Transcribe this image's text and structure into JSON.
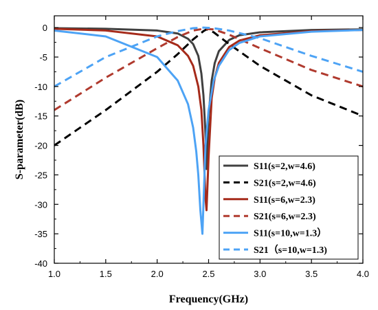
{
  "chart_data": {
    "type": "line",
    "title": "",
    "xlabel": "Frequency(GHz)",
    "ylabel": "S-parameter(dB)",
    "xlim": [
      1.0,
      4.0
    ],
    "ylim": [
      -40,
      2
    ],
    "xticks": [
      "1.0",
      "1.5",
      "2.0",
      "2.5",
      "3.0",
      "3.5",
      "4.0"
    ],
    "yticks": [
      "0",
      "-5",
      "-10",
      "-15",
      "-20",
      "-25",
      "-30",
      "-35",
      "-40"
    ],
    "grid": false,
    "legend_position": "bottom-right",
    "series": [
      {
        "name": "S11(s=2,w=4.6)",
        "color": "#404040",
        "dash": "solid",
        "x": [
          1.0,
          1.5,
          2.0,
          2.2,
          2.3,
          2.35,
          2.4,
          2.43,
          2.45,
          2.47,
          2.48,
          2.5,
          2.53,
          2.56,
          2.6,
          2.7,
          2.8,
          3.0,
          3.5,
          4.0
        ],
        "y": [
          -0.1,
          -0.2,
          -0.5,
          -1.0,
          -1.9,
          -2.8,
          -4.8,
          -7.8,
          -11.5,
          -18.0,
          -24.0,
          -15.0,
          -9.0,
          -6.0,
          -4.0,
          -2.1,
          -1.3,
          -0.8,
          -0.4,
          -0.3
        ]
      },
      {
        "name": "S21(s=2,w=4.6)",
        "color": "#000000",
        "dash": "dashed",
        "x": [
          1.0,
          1.5,
          2.0,
          2.2,
          2.35,
          2.45,
          2.48,
          2.55,
          2.7,
          3.0,
          3.5,
          4.0
        ],
        "y": [
          -20.0,
          -14.0,
          -7.5,
          -4.5,
          -2.0,
          -0.6,
          -0.3,
          -0.8,
          -2.8,
          -6.5,
          -11.5,
          -15.0
        ]
      },
      {
        "name": "S11(s=6,w=2.3)",
        "color": "#a52a1a",
        "dash": "solid",
        "x": [
          1.0,
          1.5,
          2.0,
          2.2,
          2.3,
          2.35,
          2.4,
          2.43,
          2.45,
          2.47,
          2.48,
          2.5,
          2.53,
          2.56,
          2.6,
          2.7,
          2.8,
          3.0,
          3.5,
          4.0
        ],
        "y": [
          -0.2,
          -0.5,
          -1.5,
          -3.0,
          -4.8,
          -6.5,
          -10.0,
          -14.0,
          -20.0,
          -29.0,
          -31.0,
          -22.0,
          -12.0,
          -8.5,
          -6.0,
          -3.3,
          -2.2,
          -1.3,
          -0.6,
          -0.4
        ]
      },
      {
        "name": "S21(s=6,w=2.3)",
        "color": "#b03a2e",
        "dash": "dashed",
        "x": [
          1.0,
          1.5,
          2.0,
          2.2,
          2.35,
          2.45,
          2.55,
          2.7,
          3.0,
          3.5,
          4.0
        ],
        "y": [
          -14.0,
          -8.5,
          -3.5,
          -1.6,
          -0.5,
          -0.2,
          -0.3,
          -1.2,
          -3.5,
          -7.2,
          -10.0
        ]
      },
      {
        "name": "S11(s=10,w=1.3）",
        "color": "#4da3f5",
        "dash": "solid",
        "x": [
          1.0,
          1.5,
          2.0,
          2.2,
          2.3,
          2.35,
          2.38,
          2.4,
          2.42,
          2.44,
          2.45,
          2.47,
          2.5,
          2.55,
          2.6,
          2.7,
          2.8,
          3.0,
          3.5,
          4.0
        ],
        "y": [
          -0.5,
          -1.5,
          -5.0,
          -9.0,
          -13.0,
          -17.0,
          -21.0,
          -25.0,
          -31.0,
          -35.0,
          -30.0,
          -20.0,
          -14.0,
          -9.0,
          -6.5,
          -3.8,
          -2.6,
          -1.5,
          -0.7,
          -0.4
        ]
      },
      {
        "name": "S21（s=10,w=1.3)",
        "color": "#4da3f5",
        "dash": "dashed",
        "x": [
          1.0,
          1.5,
          2.0,
          2.2,
          2.35,
          2.45,
          2.55,
          2.7,
          3.0,
          3.5,
          4.0
        ],
        "y": [
          -10.0,
          -5.0,
          -1.5,
          -0.6,
          -0.1,
          0.0,
          -0.1,
          -0.5,
          -1.8,
          -4.8,
          -7.5
        ]
      }
    ]
  }
}
